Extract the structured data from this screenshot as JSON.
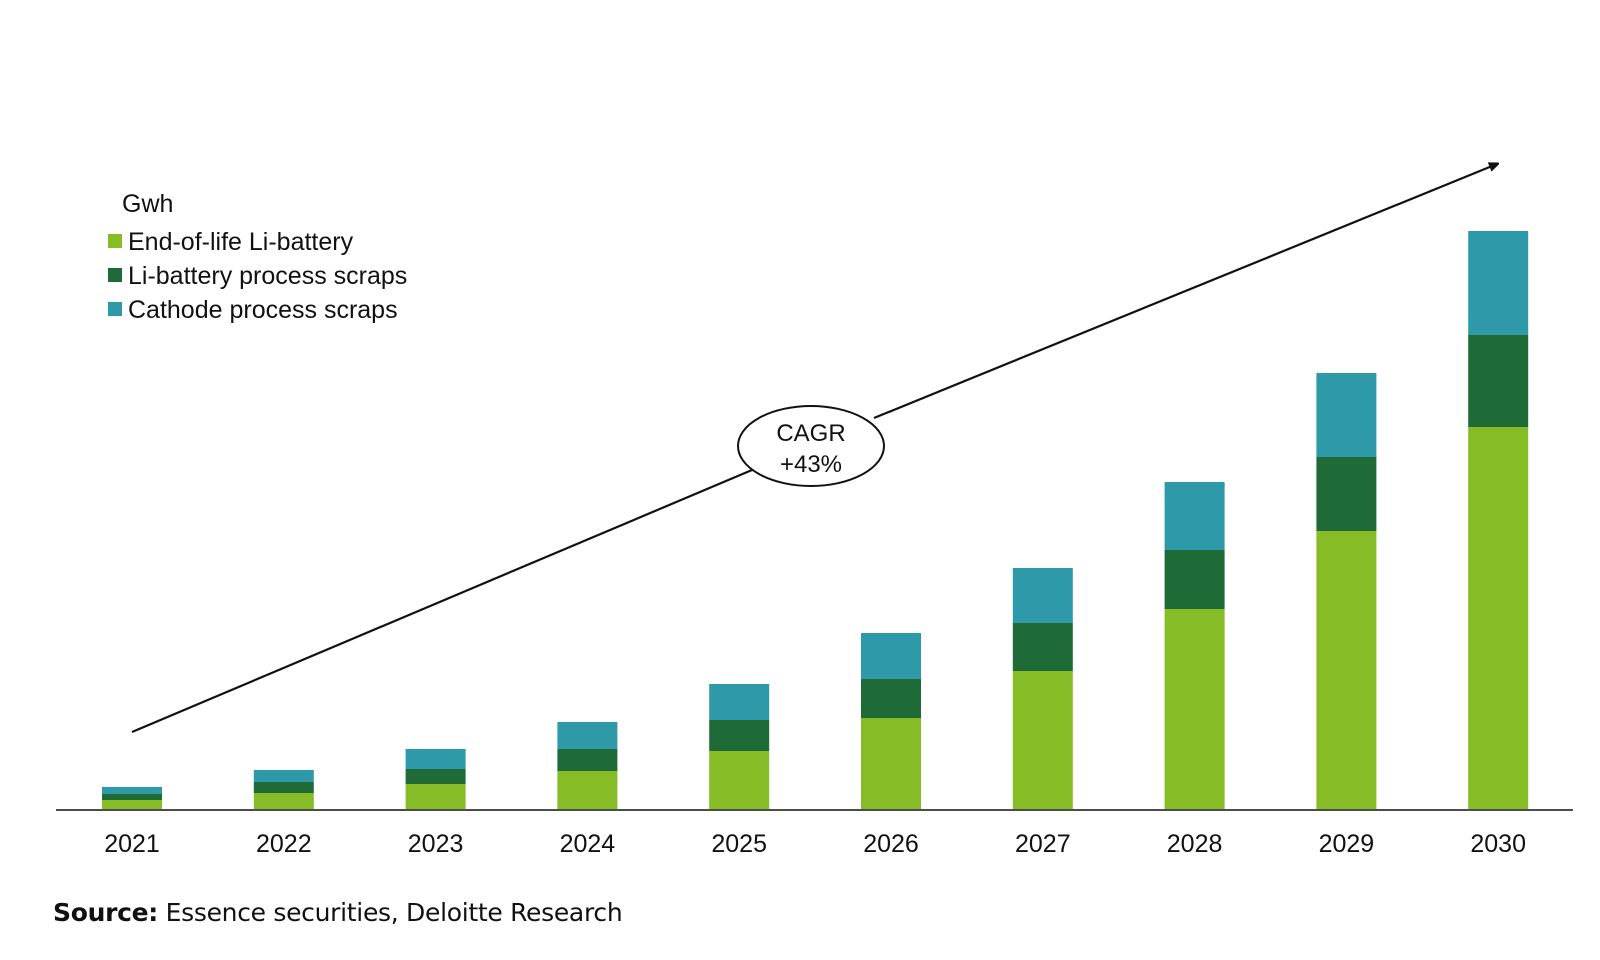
{
  "chart_data": {
    "type": "bar",
    "stacked": true,
    "title": "",
    "unit_label": "Gwh",
    "xlabel": "",
    "ylabel": "",
    "value_note": "No y-axis shown; values are relative bar-segment heights estimated from the figure",
    "categories": [
      "2021",
      "2022",
      "2023",
      "2024",
      "2025",
      "2026",
      "2027",
      "2028",
      "2029",
      "2030"
    ],
    "series": [
      {
        "name": "End-of-life Li-battery",
        "color": "#86BC25",
        "values": [
          9,
          16,
          25,
          38,
          58,
          91,
          138,
          200,
          278,
          382
        ]
      },
      {
        "name": "Li-battery process scraps",
        "color": "#1E6B38",
        "values": [
          6,
          11,
          15,
          22,
          31,
          39,
          48,
          59,
          74,
          92
        ]
      },
      {
        "name": "Cathode process scraps",
        "color": "#2E99A8",
        "values": [
          7,
          12,
          20,
          27,
          36,
          46,
          55,
          68,
          84,
          104
        ]
      }
    ],
    "ylim": [
      0,
      580
    ],
    "grid": false,
    "legend": {
      "title": "Gwh",
      "position": "top-left"
    },
    "annotations": [
      {
        "type": "trend-arrow",
        "from_category": "2021",
        "to_category": "2030",
        "label_line1": "CAGR",
        "label_line2": "+43%"
      }
    ]
  },
  "footer": {
    "source_label": "Source:",
    "source_text": " Essence securities, Deloitte Research"
  }
}
